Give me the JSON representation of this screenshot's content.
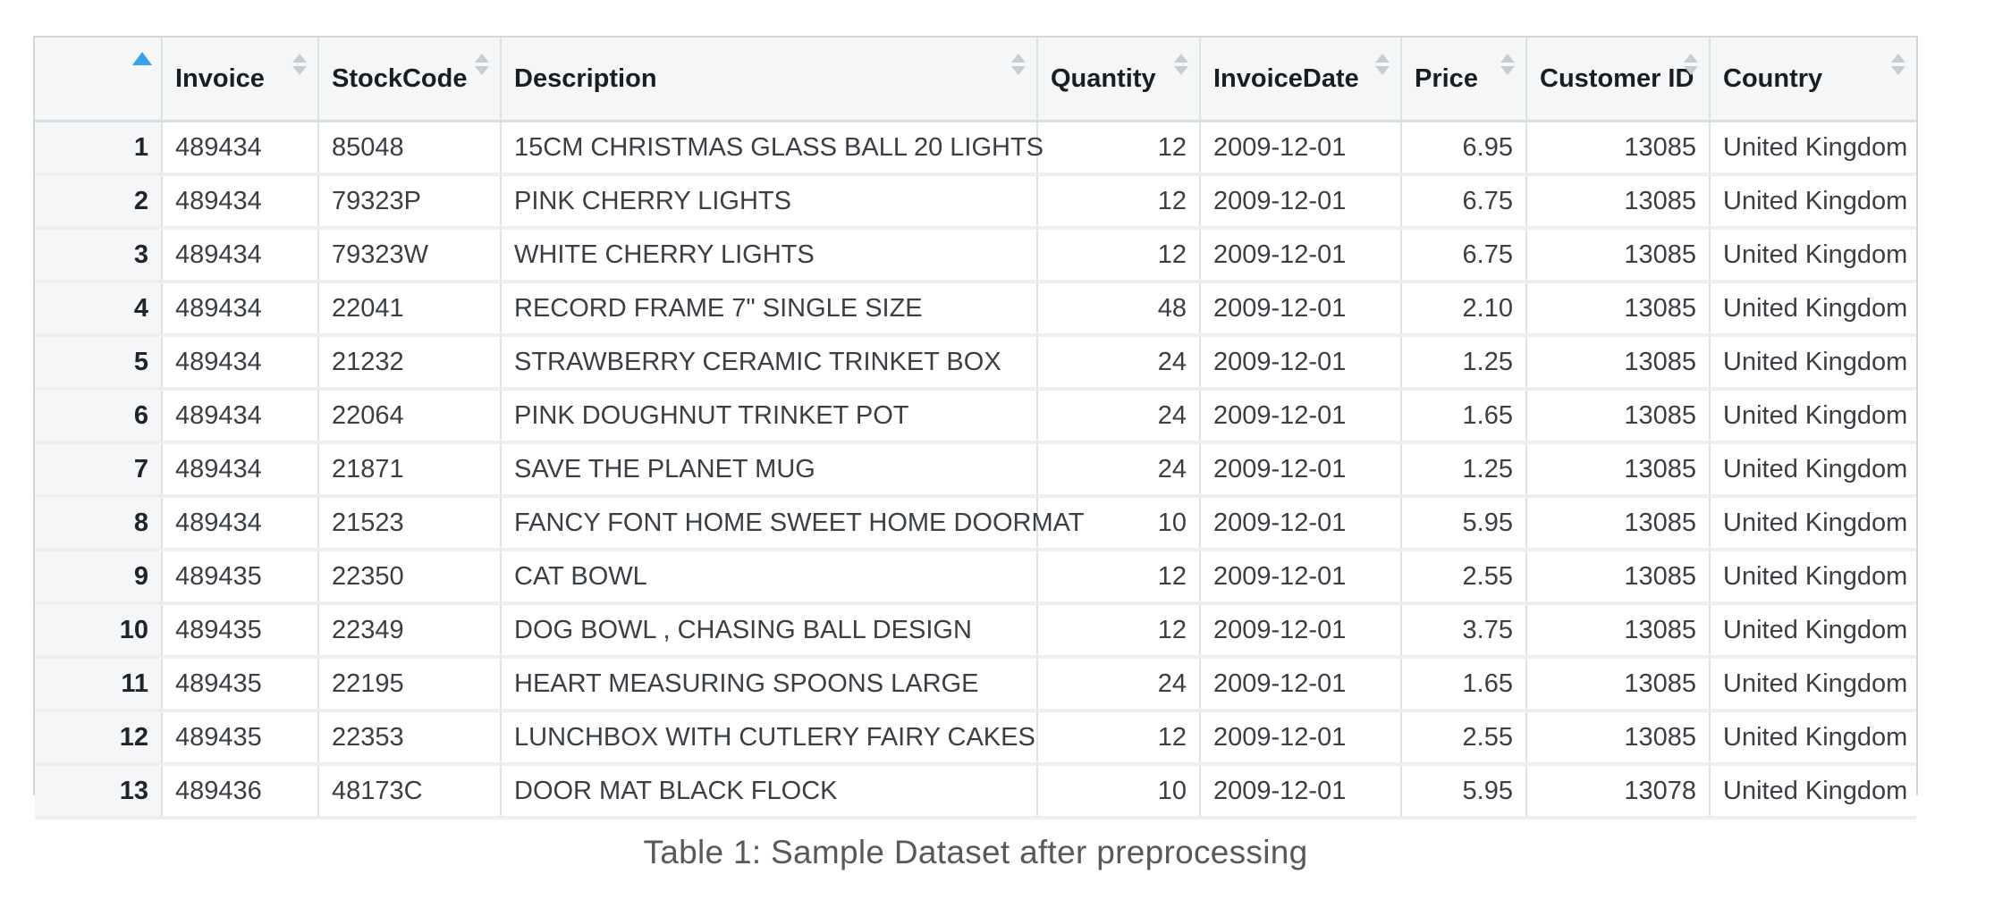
{
  "caption": "Table 1: Sample Dataset after preprocessing",
  "colors": {
    "sort_active_arrow": "#38a1e9",
    "sort_inactive_arrow": "#c7cdd2",
    "header_background": "#f4f6f8",
    "index_column_background": "#f4f6f8",
    "grid_border": "#dde2e5"
  },
  "table": {
    "sorted_column": "index",
    "sort_direction": "ascending",
    "columns": [
      {
        "key": "index",
        "label": "",
        "body_align": "right",
        "sort_state": "ascending"
      },
      {
        "key": "invoice",
        "label": "Invoice",
        "body_align": "left",
        "sort_state": "none"
      },
      {
        "key": "stock-code",
        "label": "StockCode",
        "body_align": "left",
        "sort_state": "none"
      },
      {
        "key": "description",
        "label": "Description",
        "body_align": "left",
        "sort_state": "none"
      },
      {
        "key": "quantity",
        "label": "Quantity",
        "body_align": "right",
        "sort_state": "none"
      },
      {
        "key": "invoice-date",
        "label": "InvoiceDate",
        "body_align": "left",
        "sort_state": "none"
      },
      {
        "key": "price",
        "label": "Price",
        "body_align": "right",
        "sort_state": "none"
      },
      {
        "key": "customer-id",
        "label": "Customer ID",
        "body_align": "right",
        "sort_state": "none"
      },
      {
        "key": "country",
        "label": "Country",
        "body_align": "left",
        "sort_state": "none"
      }
    ],
    "rows": [
      [
        "1",
        "489434",
        "85048",
        "15CM CHRISTMAS GLASS BALL 20 LIGHTS",
        "12",
        "2009-12-01",
        "6.95",
        "13085",
        "United Kingdom"
      ],
      [
        "2",
        "489434",
        "79323P",
        "PINK CHERRY LIGHTS",
        "12",
        "2009-12-01",
        "6.75",
        "13085",
        "United Kingdom"
      ],
      [
        "3",
        "489434",
        "79323W",
        "WHITE CHERRY LIGHTS",
        "12",
        "2009-12-01",
        "6.75",
        "13085",
        "United Kingdom"
      ],
      [
        "4",
        "489434",
        "22041",
        "RECORD FRAME 7\" SINGLE SIZE",
        "48",
        "2009-12-01",
        "2.10",
        "13085",
        "United Kingdom"
      ],
      [
        "5",
        "489434",
        "21232",
        "STRAWBERRY CERAMIC TRINKET BOX",
        "24",
        "2009-12-01",
        "1.25",
        "13085",
        "United Kingdom"
      ],
      [
        "6",
        "489434",
        "22064",
        "PINK DOUGHNUT TRINKET POT",
        "24",
        "2009-12-01",
        "1.65",
        "13085",
        "United Kingdom"
      ],
      [
        "7",
        "489434",
        "21871",
        "SAVE THE PLANET MUG",
        "24",
        "2009-12-01",
        "1.25",
        "13085",
        "United Kingdom"
      ],
      [
        "8",
        "489434",
        "21523",
        "FANCY FONT HOME SWEET HOME DOORMAT",
        "10",
        "2009-12-01",
        "5.95",
        "13085",
        "United Kingdom"
      ],
      [
        "9",
        "489435",
        "22350",
        "CAT BOWL",
        "12",
        "2009-12-01",
        "2.55",
        "13085",
        "United Kingdom"
      ],
      [
        "10",
        "489435",
        "22349",
        "DOG BOWL , CHASING BALL DESIGN",
        "12",
        "2009-12-01",
        "3.75",
        "13085",
        "United Kingdom"
      ],
      [
        "11",
        "489435",
        "22195",
        "HEART MEASURING SPOONS LARGE",
        "24",
        "2009-12-01",
        "1.65",
        "13085",
        "United Kingdom"
      ],
      [
        "12",
        "489435",
        "22353",
        "LUNCHBOX WITH CUTLERY FAIRY CAKES",
        "12",
        "2009-12-01",
        "2.55",
        "13085",
        "United Kingdom"
      ],
      [
        "13",
        "489436",
        "48173C",
        "DOOR MAT BLACK FLOCK",
        "10",
        "2009-12-01",
        "5.95",
        "13078",
        "United Kingdom"
      ]
    ]
  }
}
